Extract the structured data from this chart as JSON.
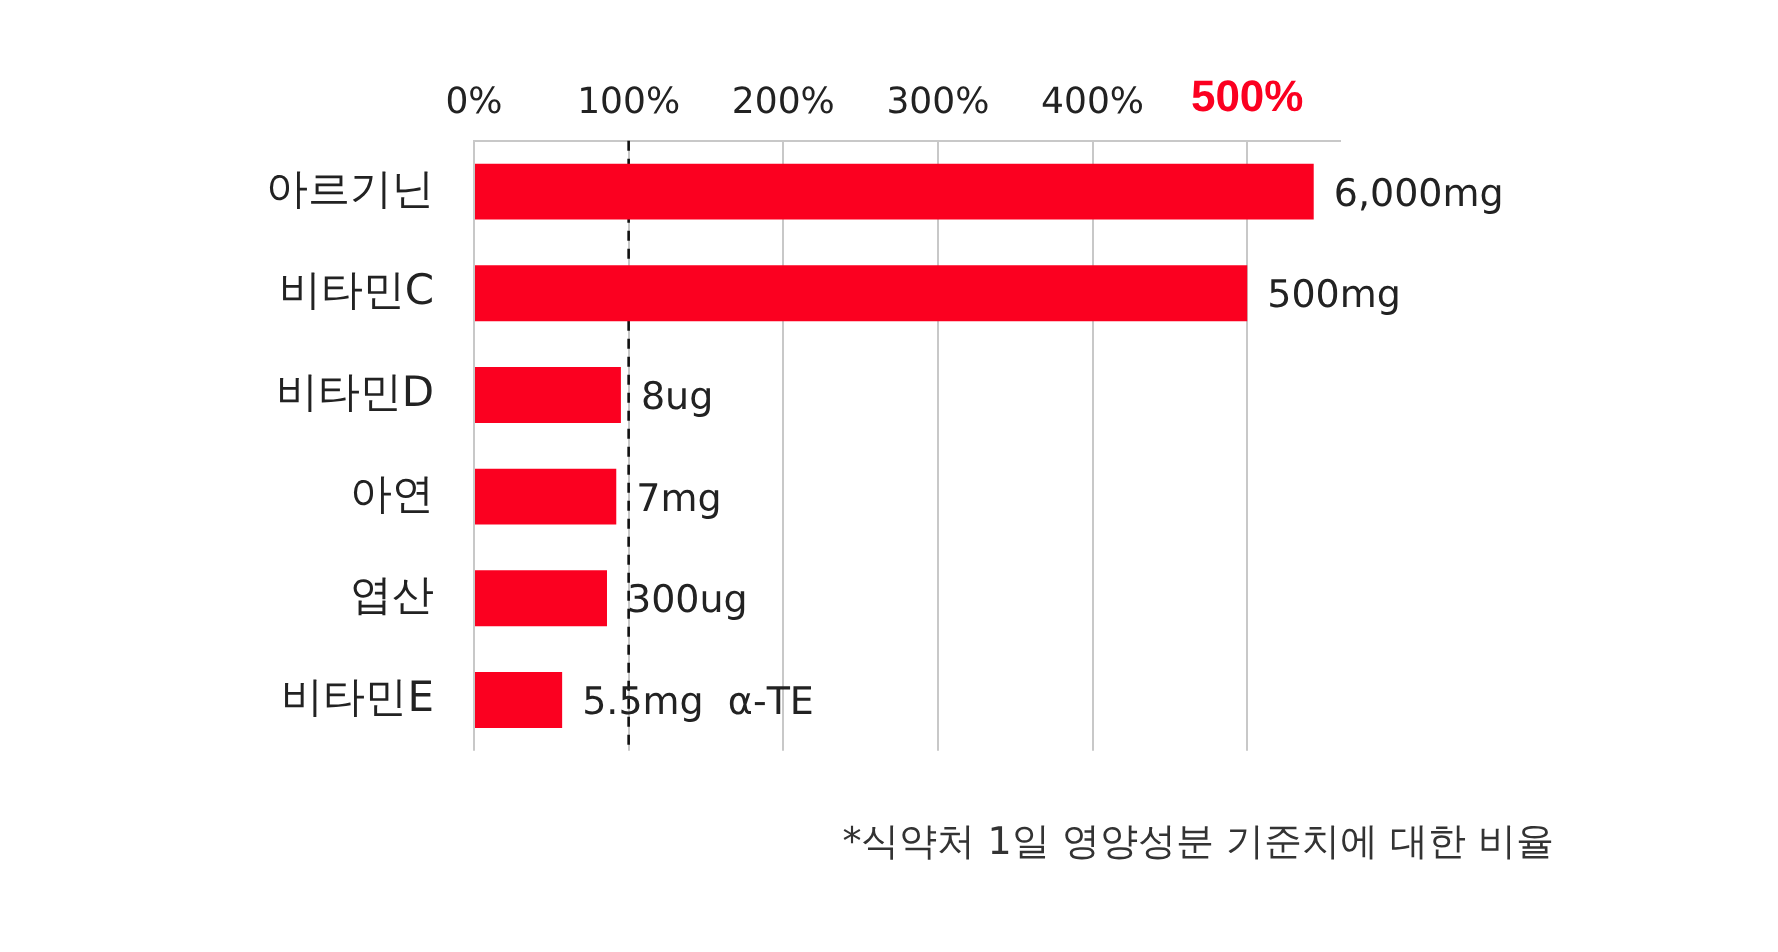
{
  "chart_data": {
    "type": "bar",
    "orientation": "horizontal",
    "categories": [
      "아르기닌",
      "비타민C",
      "비타민D",
      "아연",
      "엽산",
      "비타민E"
    ],
    "values": [
      543,
      500,
      95,
      92,
      86,
      57
    ],
    "color": "#fb0020",
    "xlim": [
      0,
      560
    ],
    "xticks": [
      {
        "value": 0,
        "label": "0%"
      },
      {
        "value": 100,
        "label": "100%"
      },
      {
        "value": 200,
        "label": "200%"
      },
      {
        "value": 300,
        "label": "300%"
      },
      {
        "value": 400,
        "label": "400%"
      },
      {
        "value": 500,
        "label": "500%"
      }
    ],
    "grid": "x",
    "legend": false,
    "ref_lines": [
      {
        "axis": "x",
        "value": 100,
        "label": null,
        "color": "#111111",
        "line_style": "dashed"
      }
    ],
    "annotations": [
      {
        "text": "6,000mg",
        "x": 543,
        "y": "아르기닌"
      },
      {
        "text": "500mg",
        "x": 500,
        "y": "비타민C"
      },
      {
        "text": "8ug",
        "x": 95,
        "y": "비타민D"
      },
      {
        "text": "7mg",
        "x": 92,
        "y": "아연"
      },
      {
        "text": "300ug",
        "x": 86,
        "y": "엽산"
      },
      {
        "text": "5.5mg  α-TE",
        "x": 57,
        "y": "비타민E"
      },
      "*식약처 1일 영양성분 기준치에 대한 비율"
    ]
  }
}
